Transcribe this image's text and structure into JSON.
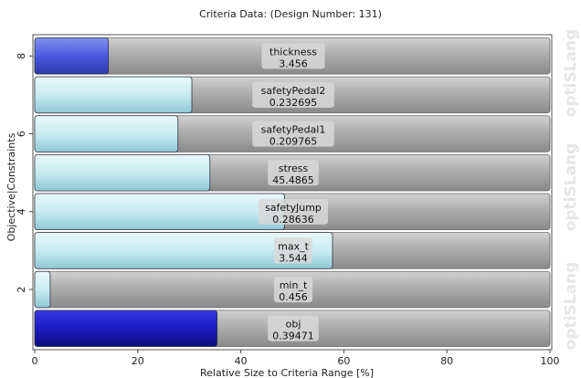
{
  "chart_data": {
    "type": "bar",
    "orientation": "horizontal",
    "title": "Criteria Data: (Design Number: 131)",
    "xlabel": "Relative Size to Criteria Range [%]",
    "ylabel": "Objective|Constraints",
    "xlim": [
      0,
      100
    ],
    "xticks": [
      "0",
      "20",
      "40",
      "60",
      "80",
      "100"
    ],
    "yticks": [
      "2",
      "4",
      "6",
      "8"
    ],
    "legend": "none",
    "bars": [
      {
        "index": 1,
        "name": "obj",
        "value_label": "0.39471",
        "relative_percent": 35.4,
        "kind": "objective"
      },
      {
        "index": 2,
        "name": "min_t",
        "value_label": "0.456",
        "relative_percent": 3.0,
        "kind": "constraint"
      },
      {
        "index": 3,
        "name": "max_t",
        "value_label": "3.544",
        "relative_percent": 57.8,
        "kind": "constraint"
      },
      {
        "index": 4,
        "name": "safetyJump",
        "value_label": "0.28636",
        "relative_percent": 48.5,
        "kind": "constraint"
      },
      {
        "index": 5,
        "name": "stress",
        "value_label": "45.4865",
        "relative_percent": 34.0,
        "kind": "constraint"
      },
      {
        "index": 6,
        "name": "safetyPedal1",
        "value_label": "0.209765",
        "relative_percent": 27.8,
        "kind": "constraint"
      },
      {
        "index": 7,
        "name": "safetyPedal2",
        "value_label": "0.232695",
        "relative_percent": 30.5,
        "kind": "constraint"
      },
      {
        "index": 8,
        "name": "thickness",
        "value_label": "3.456",
        "relative_percent": 14.3,
        "kind": "parameter"
      }
    ],
    "watermark": "optiSLang"
  },
  "colors": {
    "objective": "#1a1aa8",
    "parameter": "#4a5be0",
    "constraint": "#c8ecf2",
    "track": "#a8a8a8"
  }
}
